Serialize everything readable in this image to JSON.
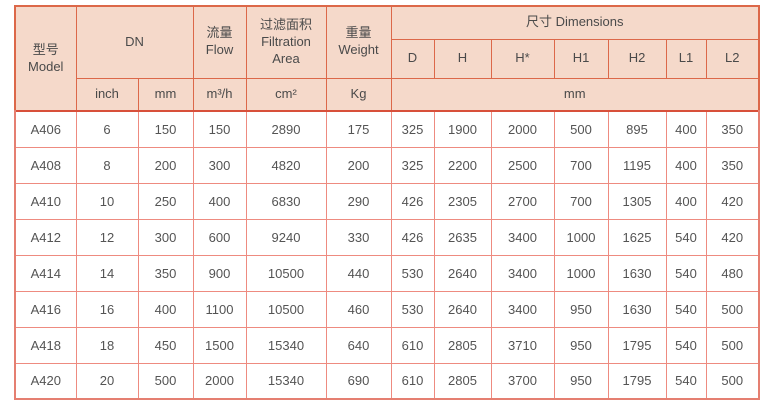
{
  "colors": {
    "header_bg": "#f5d9ca",
    "header_border": "#dc6849",
    "data_border": "#ee8b80",
    "text": "#4d4d4d",
    "row_bg": "#ffffff"
  },
  "header": {
    "model_zh": "型号",
    "model_en": "Model",
    "dn_label": "DN",
    "flow_zh": "流量",
    "flow_en": "Flow",
    "area_zh": "过滤面积",
    "area_en1": "Filtration",
    "area_en2": "Area",
    "weight_zh": "重量",
    "weight_en": "Weight",
    "dimensions_label": "尺寸 Dimensions",
    "dim_columns": [
      "D",
      "H",
      "H*",
      "H1",
      "H2",
      "L1",
      "L2"
    ],
    "unit_inch": "inch",
    "unit_mm": "mm",
    "unit_flow": "m³/h",
    "unit_area": "cm²",
    "unit_weight": "Kg",
    "unit_dim": "mm"
  },
  "rows": [
    {
      "model": "A406",
      "values": [
        "6",
        "150",
        "150",
        "2890",
        "175",
        "325",
        "1900",
        "2000",
        "500",
        "895",
        "400",
        "350"
      ]
    },
    {
      "model": "A408",
      "values": [
        "8",
        "200",
        "300",
        "4820",
        "200",
        "325",
        "2200",
        "2500",
        "700",
        "1195",
        "400",
        "350"
      ]
    },
    {
      "model": "A410",
      "values": [
        "10",
        "250",
        "400",
        "6830",
        "290",
        "426",
        "2305",
        "2700",
        "700",
        "1305",
        "400",
        "420"
      ]
    },
    {
      "model": "A412",
      "values": [
        "12",
        "300",
        "600",
        "9240",
        "330",
        "426",
        "2635",
        "3400",
        "1000",
        "1625",
        "540",
        "420"
      ]
    },
    {
      "model": "A414",
      "values": [
        "14",
        "350",
        "900",
        "10500",
        "440",
        "530",
        "2640",
        "3400",
        "1000",
        "1630",
        "540",
        "480"
      ]
    },
    {
      "model": "A416",
      "values": [
        "16",
        "400",
        "1100",
        "10500",
        "460",
        "530",
        "2640",
        "3400",
        "950",
        "1630",
        "540",
        "500"
      ]
    },
    {
      "model": "A418",
      "values": [
        "18",
        "450",
        "1500",
        "15340",
        "640",
        "610",
        "2805",
        "3710",
        "950",
        "1795",
        "540",
        "500"
      ]
    },
    {
      "model": "A420",
      "values": [
        "20",
        "500",
        "2000",
        "15340",
        "690",
        "610",
        "2805",
        "3700",
        "950",
        "1795",
        "540",
        "500"
      ]
    }
  ]
}
